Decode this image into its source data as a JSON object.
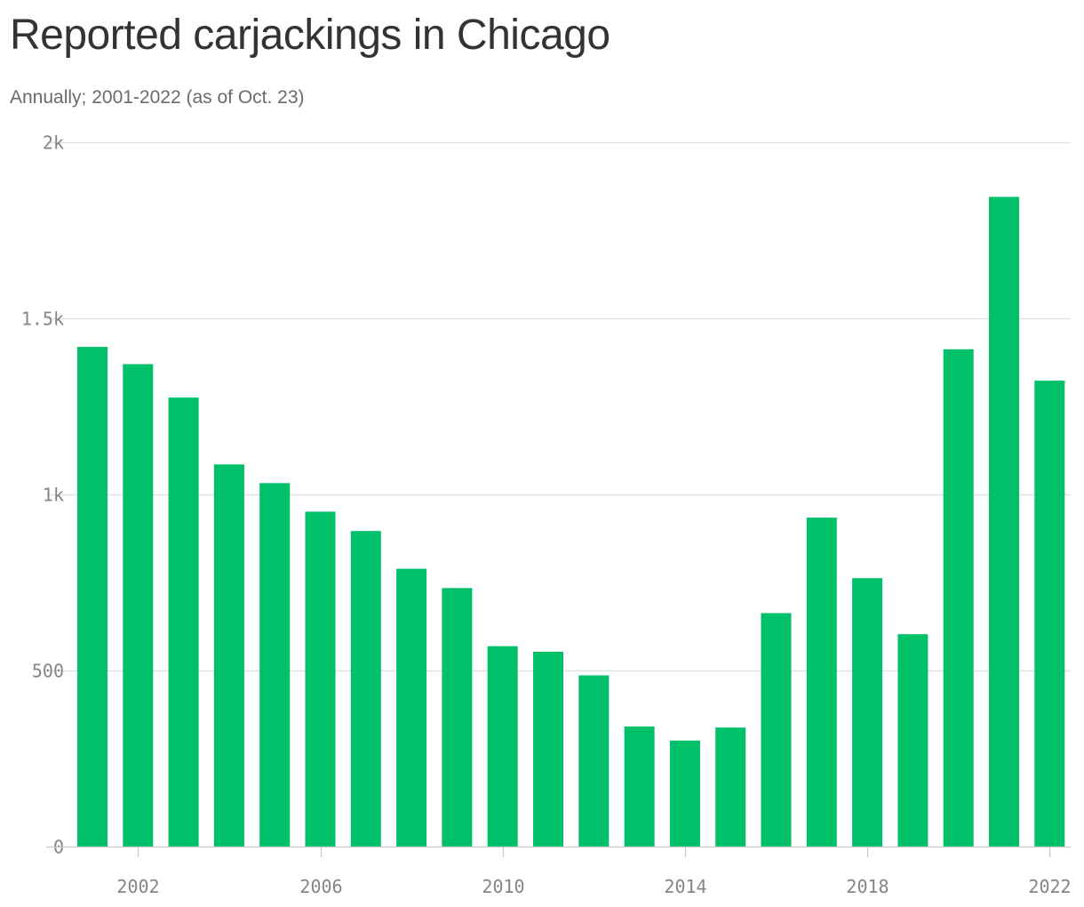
{
  "title": "Reported carjackings in Chicago",
  "subtitle": "Annually; 2001-2022 (as of Oct. 23)",
  "colors": {
    "bar": "#00c16a",
    "grid": "#dddddd",
    "axis": "#c8c8c8",
    "tick_text": "#858585",
    "title": "#333333",
    "subtitle": "#6b6b6b"
  },
  "chart_data": {
    "type": "bar",
    "title": "Reported carjackings in Chicago",
    "subtitle": "Annually; 2001-2022 (as of Oct. 23)",
    "xlabel": "",
    "ylabel": "",
    "categories": [
      "2001",
      "2002",
      "2003",
      "2004",
      "2005",
      "2006",
      "2007",
      "2008",
      "2009",
      "2010",
      "2011",
      "2012",
      "2013",
      "2014",
      "2015",
      "2016",
      "2017",
      "2018",
      "2019",
      "2020",
      "2021",
      "2022"
    ],
    "values": [
      1419,
      1370,
      1275,
      1085,
      1032,
      951,
      896,
      789,
      734,
      569,
      553,
      486,
      341,
      301,
      338,
      663,
      934,
      762,
      603,
      1412,
      1845,
      1323
    ],
    "ylim": [
      0,
      2000
    ],
    "y_ticks": [
      {
        "value": 0,
        "label": "0"
      },
      {
        "value": 500,
        "label": "500"
      },
      {
        "value": 1000,
        "label": "1k"
      },
      {
        "value": 1500,
        "label": "1.5k"
      },
      {
        "value": 2000,
        "label": "2k"
      }
    ],
    "x_ticks": [
      "2002",
      "2006",
      "2010",
      "2014",
      "2018",
      "2022"
    ],
    "grid": true,
    "legend": "none"
  }
}
